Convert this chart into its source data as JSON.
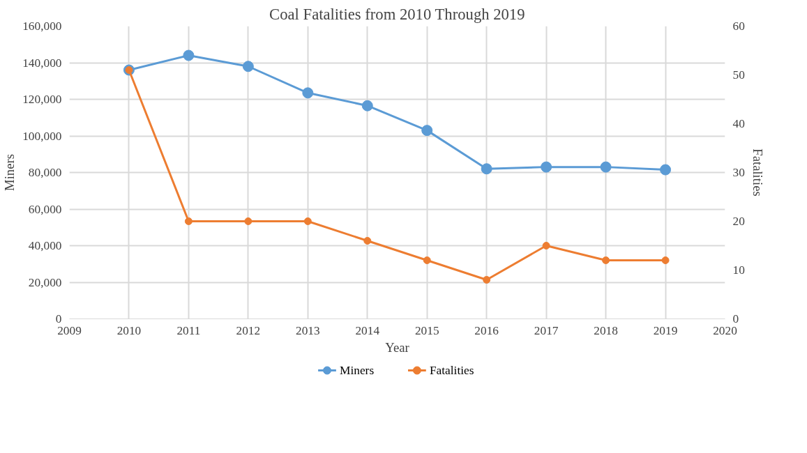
{
  "chart_data": {
    "type": "line",
    "title": "Coal Fatalities from 2010 Through 2019",
    "xlabel": "Year",
    "ylabel": "Miners",
    "y2label": "Fatalities",
    "x": [
      2010,
      2011,
      2012,
      2013,
      2014,
      2015,
      2016,
      2017,
      2018,
      2019
    ],
    "series": [
      {
        "name": "Miners",
        "color": "#5b9bd5",
        "values": [
          136000,
          144000,
          138000,
          123500,
          116500,
          103000,
          82000,
          83000,
          83000,
          81500
        ]
      },
      {
        "name": "Fatalities",
        "color": "#ed7d31",
        "axis": "y2",
        "values": [
          51,
          20,
          20,
          20,
          16,
          12,
          8,
          15,
          12,
          12
        ]
      }
    ],
    "xlim": [
      2009,
      2020
    ],
    "xticks": [
      2009,
      2010,
      2011,
      2012,
      2013,
      2014,
      2015,
      2016,
      2017,
      2018,
      2019,
      2020
    ],
    "ylim": [
      0,
      160000
    ],
    "yticks": [
      {
        "value": 0,
        "label": "0"
      },
      {
        "value": 20000,
        "label": "20,000"
      },
      {
        "value": 40000,
        "label": "40,000"
      },
      {
        "value": 60000,
        "label": "60,000"
      },
      {
        "value": 80000,
        "label": "80,000"
      },
      {
        "value": 100000,
        "label": "100,000"
      },
      {
        "value": 120000,
        "label": "120,000"
      },
      {
        "value": 140000,
        "label": "140,000"
      },
      {
        "value": 160000,
        "label": "160,000"
      }
    ],
    "y2lim": [
      0,
      60
    ],
    "y2ticks": [
      0,
      10,
      20,
      30,
      40,
      50,
      60
    ],
    "grid": true,
    "legend": "bottom",
    "marker": "circle",
    "line_style": "solid"
  }
}
